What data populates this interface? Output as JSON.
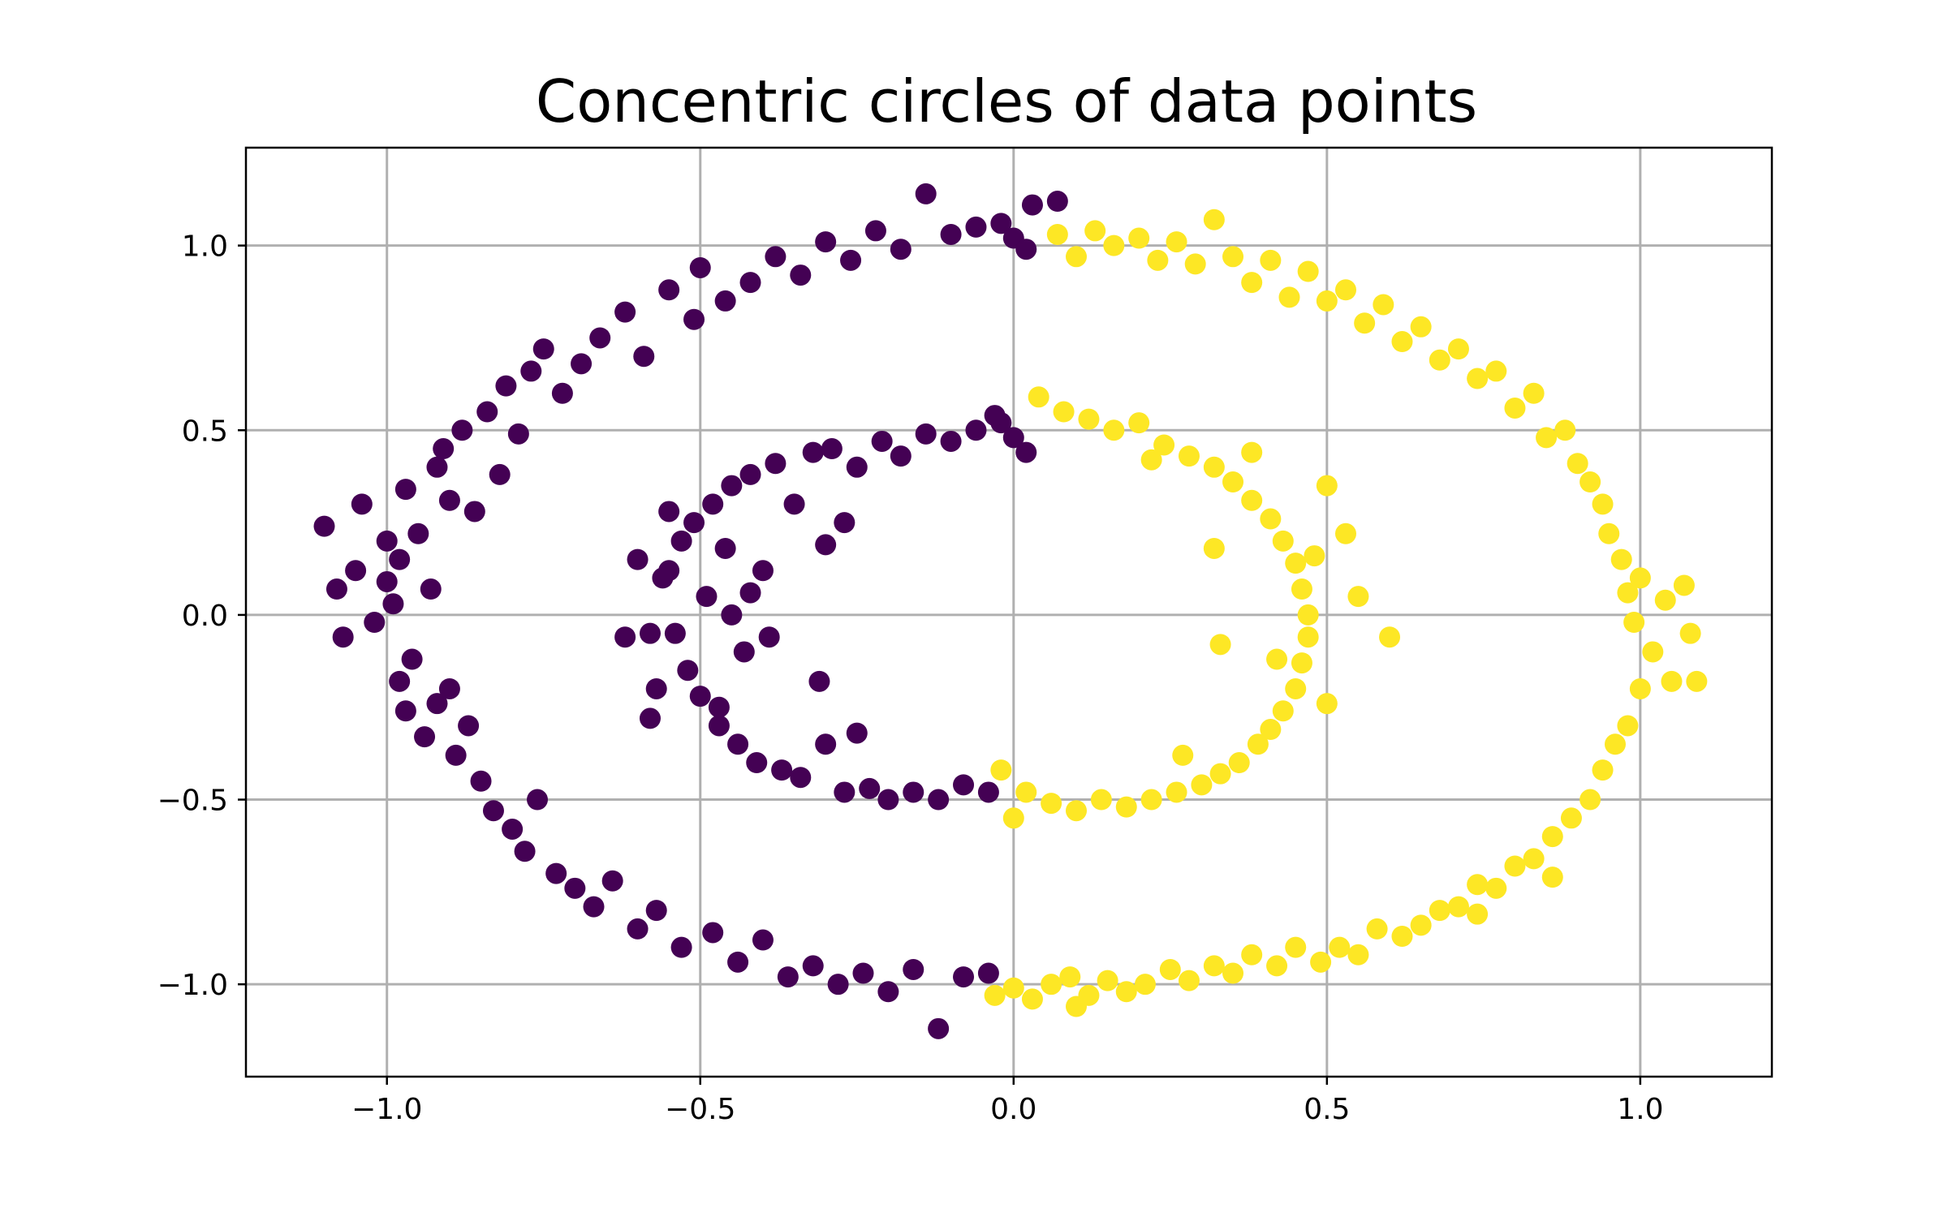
{
  "chart_data": {
    "type": "scatter",
    "title": "Concentric circles of data points",
    "xlabel": "",
    "ylabel": "",
    "xlim": [
      -1.225,
      1.21
    ],
    "ylim": [
      -1.25,
      1.265
    ],
    "xticks": [
      -1.0,
      -0.5,
      0.0,
      0.5,
      1.0
    ],
    "yticks": [
      -1.0,
      -0.5,
      0.0,
      0.5,
      1.0
    ],
    "xtick_labels": [
      "−1.0",
      "−0.5",
      "0.0",
      "0.5",
      "1.0"
    ],
    "ytick_labels": [
      "−1.0",
      "−0.5",
      "0.0",
      "0.5",
      "1.0"
    ],
    "grid": true,
    "legend": false,
    "colors": {
      "class_0": "#440154",
      "class_1": "#fde725",
      "grid": "#b0b0b0",
      "frame": "#000000"
    },
    "series": [
      {
        "values": [
          [
            -1.1,
            0.24
          ],
          [
            -1.08,
            0.07
          ],
          [
            -1.07,
            -0.06
          ],
          [
            -1.05,
            0.12
          ],
          [
            -1.04,
            0.3
          ],
          [
            -1.02,
            -0.02
          ],
          [
            -1.0,
            0.09
          ],
          [
            -1.0,
            0.2
          ],
          [
            -0.99,
            0.03
          ],
          [
            -0.98,
            0.15
          ],
          [
            -0.98,
            -0.18
          ],
          [
            -0.97,
            -0.26
          ],
          [
            -0.97,
            0.34
          ],
          [
            -0.96,
            -0.12
          ],
          [
            -0.95,
            0.22
          ],
          [
            -0.94,
            -0.33
          ],
          [
            -0.93,
            0.07
          ],
          [
            -0.92,
            -0.24
          ],
          [
            -0.92,
            0.4
          ],
          [
            -0.91,
            0.45
          ],
          [
            -0.9,
            -0.2
          ],
          [
            -0.9,
            0.31
          ],
          [
            -0.89,
            -0.38
          ],
          [
            -0.88,
            0.5
          ],
          [
            -0.87,
            -0.3
          ],
          [
            -0.86,
            0.28
          ],
          [
            -0.85,
            -0.45
          ],
          [
            -0.84,
            0.55
          ],
          [
            -0.83,
            -0.53
          ],
          [
            -0.82,
            0.38
          ],
          [
            -0.81,
            0.62
          ],
          [
            -0.8,
            -0.58
          ],
          [
            -0.79,
            0.49
          ],
          [
            -0.78,
            -0.64
          ],
          [
            -0.77,
            0.66
          ],
          [
            -0.76,
            -0.5
          ],
          [
            -0.75,
            0.72
          ],
          [
            -0.73,
            -0.7
          ],
          [
            -0.72,
            0.6
          ],
          [
            -0.7,
            -0.74
          ],
          [
            -0.69,
            0.68
          ],
          [
            -0.67,
            -0.79
          ],
          [
            -0.66,
            0.75
          ],
          [
            -0.64,
            -0.72
          ],
          [
            -0.62,
            0.82
          ],
          [
            -0.6,
            -0.85
          ],
          [
            -0.59,
            0.7
          ],
          [
            -0.57,
            -0.8
          ],
          [
            -0.55,
            0.88
          ],
          [
            -0.53,
            -0.9
          ],
          [
            -0.51,
            0.8
          ],
          [
            -0.5,
            0.94
          ],
          [
            -0.48,
            -0.86
          ],
          [
            -0.46,
            0.85
          ],
          [
            -0.44,
            -0.94
          ],
          [
            -0.42,
            0.9
          ],
          [
            -0.4,
            -0.88
          ],
          [
            -0.38,
            0.97
          ],
          [
            -0.36,
            -0.98
          ],
          [
            -0.34,
            0.92
          ],
          [
            -0.32,
            -0.95
          ],
          [
            -0.3,
            1.01
          ],
          [
            -0.28,
            -1.0
          ],
          [
            -0.26,
            0.96
          ],
          [
            -0.24,
            -0.97
          ],
          [
            -0.22,
            1.04
          ],
          [
            -0.2,
            -1.02
          ],
          [
            -0.18,
            0.99
          ],
          [
            -0.16,
            -0.96
          ],
          [
            -0.14,
            1.14
          ],
          [
            -0.12,
            -1.12
          ],
          [
            -0.1,
            1.03
          ],
          [
            -0.08,
            -0.98
          ],
          [
            -0.06,
            1.05
          ],
          [
            -0.04,
            -0.97
          ],
          [
            -0.02,
            1.06
          ],
          [
            0.0,
            1.02
          ],
          [
            0.03,
            1.11
          ],
          [
            0.07,
            1.12
          ],
          [
            0.02,
            0.99
          ],
          [
            -0.54,
            -0.05
          ],
          [
            -0.55,
            0.12
          ],
          [
            -0.53,
            0.2
          ],
          [
            -0.52,
            -0.15
          ],
          [
            -0.51,
            0.25
          ],
          [
            -0.5,
            -0.22
          ],
          [
            -0.49,
            0.05
          ],
          [
            -0.48,
            0.3
          ],
          [
            -0.47,
            -0.3
          ],
          [
            -0.46,
            0.18
          ],
          [
            -0.45,
            0.35
          ],
          [
            -0.44,
            -0.35
          ],
          [
            -0.43,
            -0.1
          ],
          [
            -0.42,
            0.38
          ],
          [
            -0.41,
            -0.4
          ],
          [
            -0.4,
            0.12
          ],
          [
            -0.38,
            0.41
          ],
          [
            -0.37,
            -0.42
          ],
          [
            -0.35,
            0.3
          ],
          [
            -0.34,
            -0.44
          ],
          [
            -0.32,
            0.44
          ],
          [
            -0.3,
            -0.35
          ],
          [
            -0.29,
            0.45
          ],
          [
            -0.27,
            -0.48
          ],
          [
            -0.25,
            0.4
          ],
          [
            -0.23,
            -0.47
          ],
          [
            -0.21,
            0.47
          ],
          [
            -0.2,
            -0.5
          ],
          [
            -0.18,
            0.43
          ],
          [
            -0.16,
            -0.48
          ],
          [
            -0.14,
            0.49
          ],
          [
            -0.12,
            -0.5
          ],
          [
            -0.1,
            0.47
          ],
          [
            -0.08,
            -0.46
          ],
          [
            -0.06,
            0.5
          ],
          [
            -0.04,
            -0.48
          ],
          [
            -0.02,
            0.52
          ],
          [
            0.0,
            0.48
          ],
          [
            0.02,
            0.44
          ],
          [
            -0.03,
            0.54
          ],
          [
            -0.58,
            -0.05
          ],
          [
            -0.56,
            0.1
          ],
          [
            -0.6,
            0.15
          ],
          [
            -0.62,
            -0.06
          ],
          [
            -0.57,
            -0.2
          ],
          [
            -0.45,
            0.0
          ],
          [
            -0.42,
            0.06
          ],
          [
            -0.39,
            -0.06
          ],
          [
            -0.25,
            -0.32
          ],
          [
            -0.3,
            0.19
          ],
          [
            -0.27,
            0.25
          ],
          [
            -0.31,
            -0.18
          ],
          [
            -0.55,
            0.28
          ],
          [
            -0.58,
            -0.28
          ],
          [
            -0.47,
            -0.25
          ]
        ]
      },
      {
        "values": [
          [
            0.07,
            1.03
          ],
          [
            0.1,
            0.97
          ],
          [
            0.13,
            1.04
          ],
          [
            0.16,
            1.0
          ],
          [
            0.2,
            1.02
          ],
          [
            0.23,
            0.96
          ],
          [
            0.26,
            1.01
          ],
          [
            0.29,
            0.95
          ],
          [
            0.32,
            1.07
          ],
          [
            0.35,
            0.97
          ],
          [
            0.38,
            0.9
          ],
          [
            0.41,
            0.96
          ],
          [
            0.44,
            0.86
          ],
          [
            0.47,
            0.93
          ],
          [
            0.5,
            0.85
          ],
          [
            0.53,
            0.88
          ],
          [
            0.56,
            0.79
          ],
          [
            0.59,
            0.84
          ],
          [
            0.62,
            0.74
          ],
          [
            0.65,
            0.78
          ],
          [
            0.68,
            0.69
          ],
          [
            0.71,
            0.72
          ],
          [
            0.74,
            0.64
          ],
          [
            0.77,
            0.66
          ],
          [
            0.8,
            0.56
          ],
          [
            0.83,
            0.6
          ],
          [
            0.85,
            0.48
          ],
          [
            0.88,
            0.5
          ],
          [
            0.9,
            0.41
          ],
          [
            0.92,
            0.36
          ],
          [
            0.94,
            0.3
          ],
          [
            0.95,
            0.22
          ],
          [
            0.97,
            0.15
          ],
          [
            0.98,
            0.06
          ],
          [
            0.99,
            -0.02
          ],
          [
            1.0,
            0.1
          ],
          [
            1.02,
            -0.1
          ],
          [
            1.04,
            0.04
          ],
          [
            1.05,
            -0.18
          ],
          [
            1.07,
            0.08
          ],
          [
            1.08,
            -0.05
          ],
          [
            1.09,
            -0.18
          ],
          [
            1.0,
            -0.2
          ],
          [
            0.98,
            -0.3
          ],
          [
            0.96,
            -0.35
          ],
          [
            0.94,
            -0.42
          ],
          [
            0.92,
            -0.5
          ],
          [
            0.89,
            -0.55
          ],
          [
            0.86,
            -0.6
          ],
          [
            0.83,
            -0.66
          ],
          [
            0.8,
            -0.68
          ],
          [
            0.77,
            -0.74
          ],
          [
            0.74,
            -0.73
          ],
          [
            0.71,
            -0.79
          ],
          [
            0.68,
            -0.8
          ],
          [
            0.65,
            -0.84
          ],
          [
            0.62,
            -0.87
          ],
          [
            0.58,
            -0.85
          ],
          [
            0.55,
            -0.92
          ],
          [
            0.52,
            -0.9
          ],
          [
            0.49,
            -0.94
          ],
          [
            0.45,
            -0.9
          ],
          [
            0.42,
            -0.95
          ],
          [
            0.38,
            -0.92
          ],
          [
            0.35,
            -0.97
          ],
          [
            0.32,
            -0.95
          ],
          [
            0.28,
            -0.99
          ],
          [
            0.25,
            -0.96
          ],
          [
            0.21,
            -1.0
          ],
          [
            0.18,
            -1.02
          ],
          [
            0.15,
            -0.99
          ],
          [
            0.12,
            -1.03
          ],
          [
            0.09,
            -0.98
          ],
          [
            0.06,
            -1.0
          ],
          [
            0.03,
            -1.04
          ],
          [
            0.0,
            -1.01
          ],
          [
            -0.03,
            -1.03
          ],
          [
            0.1,
            -1.06
          ],
          [
            0.86,
            -0.71
          ],
          [
            0.74,
            -0.81
          ],
          [
            0.04,
            0.59
          ],
          [
            0.08,
            0.55
          ],
          [
            0.12,
            0.53
          ],
          [
            0.16,
            0.5
          ],
          [
            0.2,
            0.52
          ],
          [
            0.24,
            0.46
          ],
          [
            0.28,
            0.43
          ],
          [
            0.32,
            0.4
          ],
          [
            0.35,
            0.36
          ],
          [
            0.38,
            0.31
          ],
          [
            0.41,
            0.26
          ],
          [
            0.43,
            0.2
          ],
          [
            0.45,
            0.14
          ],
          [
            0.46,
            0.07
          ],
          [
            0.47,
            0.0
          ],
          [
            0.47,
            -0.06
          ],
          [
            0.46,
            -0.13
          ],
          [
            0.45,
            -0.2
          ],
          [
            0.43,
            -0.26
          ],
          [
            0.41,
            -0.31
          ],
          [
            0.39,
            -0.35
          ],
          [
            0.36,
            -0.4
          ],
          [
            0.33,
            -0.43
          ],
          [
            0.3,
            -0.46
          ],
          [
            0.26,
            -0.48
          ],
          [
            0.22,
            -0.5
          ],
          [
            0.18,
            -0.52
          ],
          [
            0.14,
            -0.5
          ],
          [
            0.1,
            -0.53
          ],
          [
            0.06,
            -0.51
          ],
          [
            0.02,
            -0.48
          ],
          [
            -0.02,
            -0.42
          ],
          [
            0.0,
            -0.55
          ],
          [
            0.53,
            0.22
          ],
          [
            0.55,
            0.05
          ],
          [
            0.6,
            -0.06
          ],
          [
            0.5,
            0.35
          ],
          [
            0.32,
            0.18
          ],
          [
            0.33,
            -0.08
          ],
          [
            0.22,
            0.42
          ],
          [
            0.48,
            0.16
          ],
          [
            0.42,
            -0.12
          ],
          [
            0.27,
            -0.38
          ],
          [
            0.5,
            -0.24
          ],
          [
            0.38,
            0.44
          ]
        ]
      }
    ]
  }
}
